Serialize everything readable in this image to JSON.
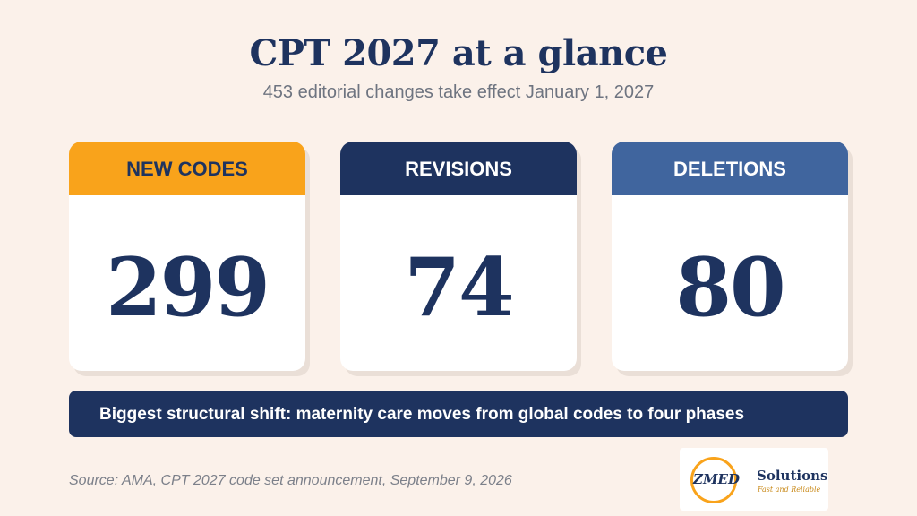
{
  "header": {
    "title": "CPT 2027 at a glance",
    "subtitle": "453 editorial changes take effect January 1, 2027"
  },
  "cards": [
    {
      "label": "NEW CODES",
      "value": "299",
      "color": "#f9a31b"
    },
    {
      "label": "REVISIONS",
      "value": "74",
      "color": "#1e335f"
    },
    {
      "label": "DELETIONS",
      "value": "80",
      "color": "#40659e"
    }
  ],
  "banner": {
    "text": "Biggest structural shift: maternity care moves from global codes to four phases"
  },
  "footer": {
    "source": "Source: AMA, CPT 2027 code set announcement, September 9, 2026"
  },
  "logo": {
    "mark": "ZMED",
    "name": "Solutions",
    "tagline": "Fast and Reliable"
  },
  "colors": {
    "background": "#fbf1ea",
    "navy": "#1e335f",
    "accent": "#f9a31b"
  }
}
